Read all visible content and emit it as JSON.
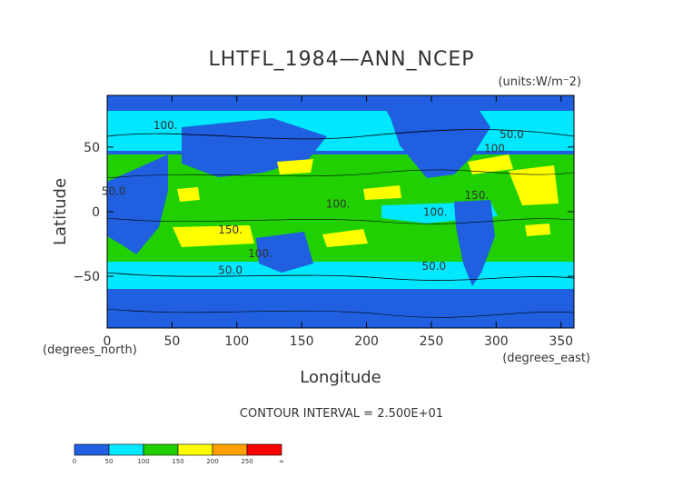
{
  "chart_data": {
    "type": "heatmap",
    "title": "LHTFL_1984—ANN_NCEP",
    "units": "(units:W/m⁻2)",
    "xlabel": "Longitude",
    "ylabel": "Latitude",
    "x_unit_label": "(degrees_east)",
    "y_unit_label": "(degrees_north)",
    "xlim": [
      0,
      360
    ],
    "ylim": [
      -90,
      90
    ],
    "x_ticks": [
      0,
      50,
      100,
      150,
      200,
      250,
      300,
      350
    ],
    "y_ticks": [
      50,
      0,
      -50
    ],
    "contour_interval_text": "CONTOUR INTERVAL = 2.500E+01",
    "contour_labels": [
      {
        "x": 45,
        "y": 64,
        "text": "100."
      },
      {
        "x": 312,
        "y": 57,
        "text": "50.0"
      },
      {
        "x": 300,
        "y": 46,
        "text": "100."
      },
      {
        "x": 5,
        "y": 13,
        "text": "50.0"
      },
      {
        "x": 285,
        "y": 10,
        "text": "150."
      },
      {
        "x": 178,
        "y": 3,
        "text": "100."
      },
      {
        "x": 253,
        "y": -3,
        "text": "100."
      },
      {
        "x": 95,
        "y": -17,
        "text": "150."
      },
      {
        "x": 118,
        "y": -35,
        "text": "100."
      },
      {
        "x": 95,
        "y": -48,
        "text": "50.0"
      },
      {
        "x": 252,
        "y": -45,
        "text": "50.0"
      }
    ],
    "colorbar": {
      "bins": [
        {
          "color": "#1f5fe0",
          "from": 0,
          "to": 50
        },
        {
          "color": "#00e8ff",
          "from": 50,
          "to": 100
        },
        {
          "color": "#20d000",
          "from": 100,
          "to": 150
        },
        {
          "color": "#ffff00",
          "from": 150,
          "to": 200
        },
        {
          "color": "#ffa000",
          "from": 200,
          "to": 250
        },
        {
          "color": "#ff0000",
          "from": 250,
          "to": "∞"
        }
      ],
      "labels": [
        "0",
        "50",
        "100",
        "150",
        "200",
        "250",
        "∞"
      ]
    },
    "grid": false,
    "legend": "bottom-left"
  }
}
